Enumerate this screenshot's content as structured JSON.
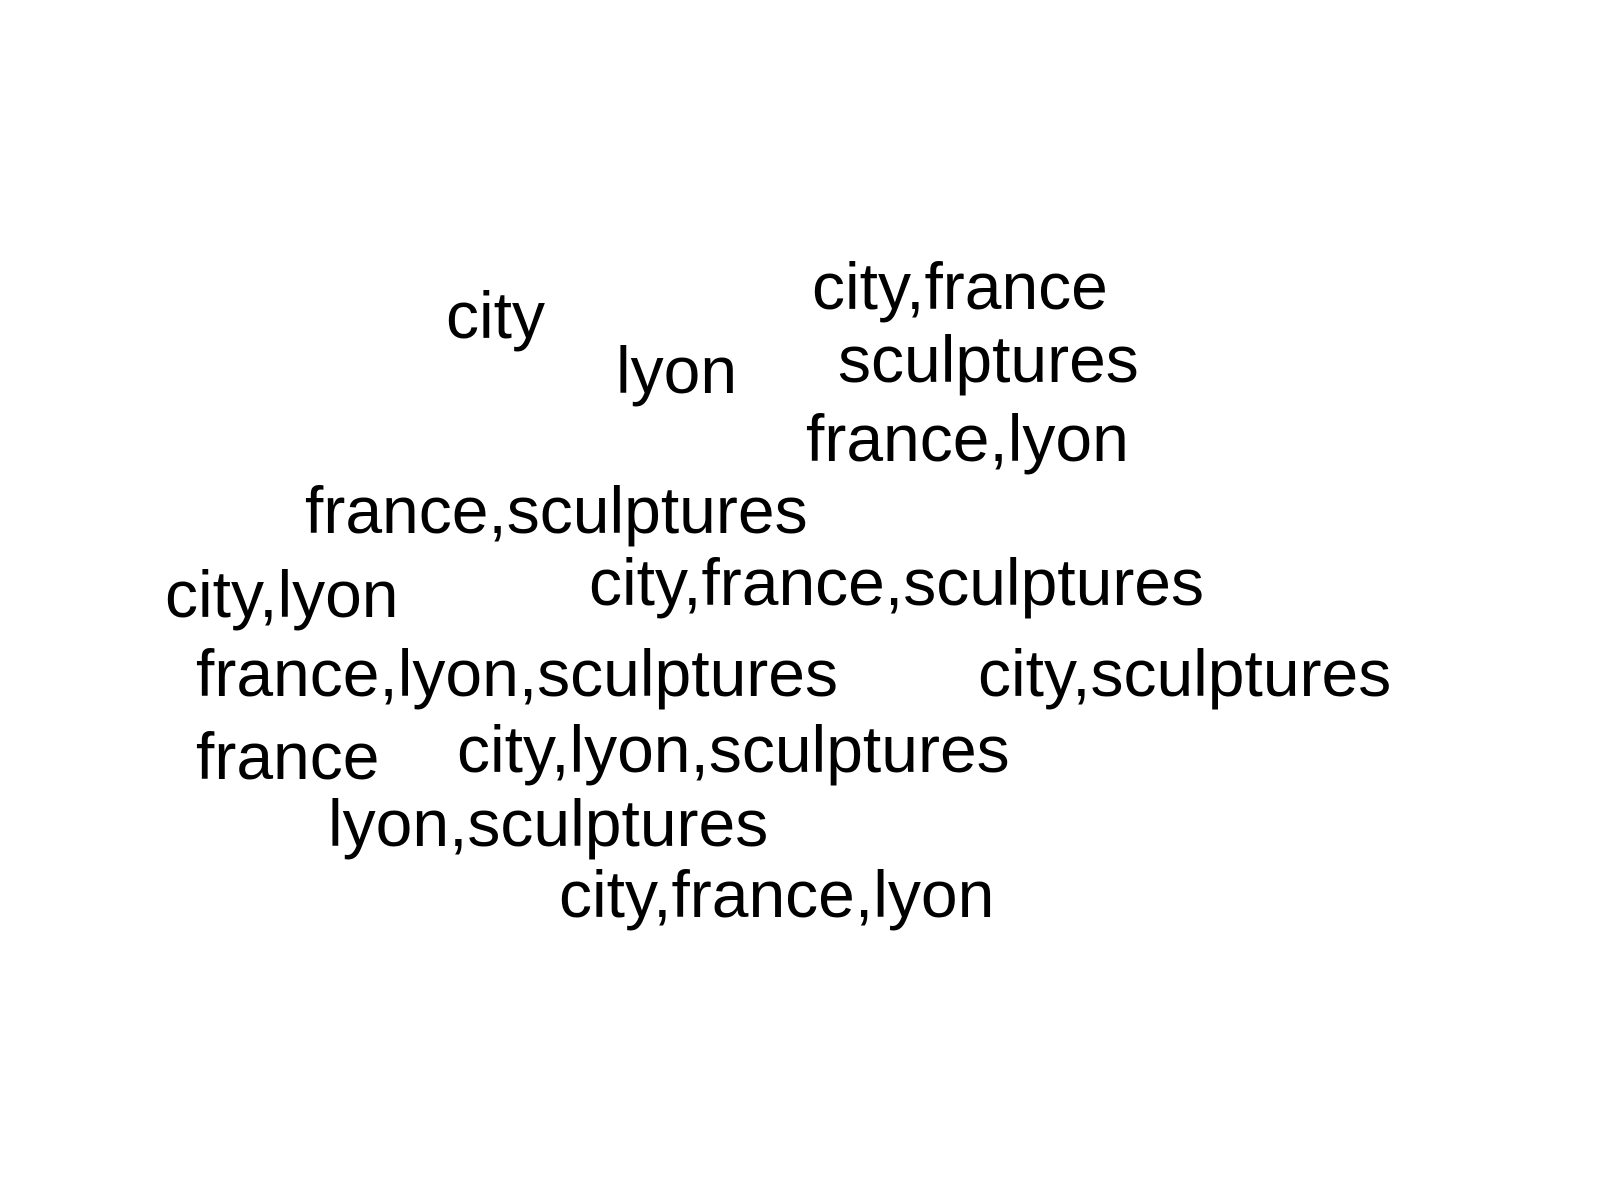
{
  "word_cloud": {
    "words": [
      "city",
      "lyon",
      "city,france",
      "sculptures",
      "france,lyon",
      "france,sculptures",
      "city,lyon",
      "city,france,sculptures",
      "france,lyon,sculptures",
      "city,sculptures",
      "france",
      "city,lyon,sculptures",
      "lyon,sculptures",
      "city,france,lyon"
    ],
    "color": "#000000",
    "background": "#ffffff"
  }
}
